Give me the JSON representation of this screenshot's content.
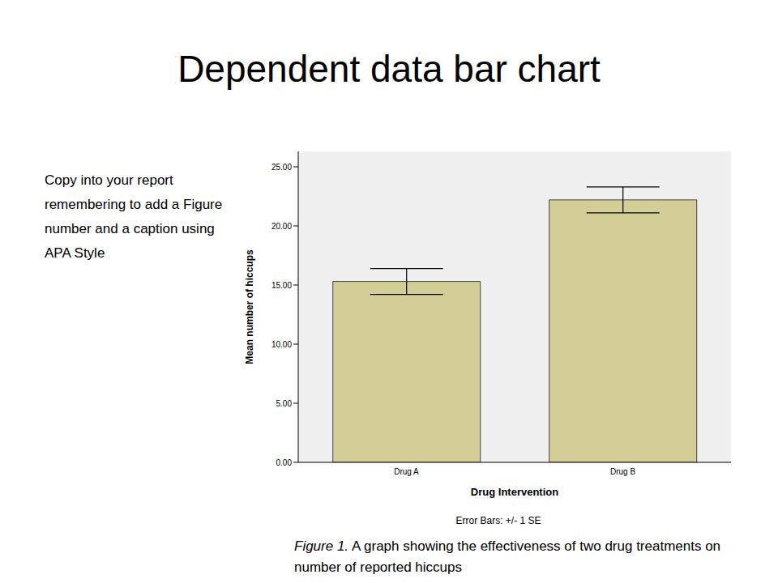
{
  "slide": {
    "title": "Dependent data bar chart",
    "instruction": "Copy into your report remembering to add a Figure number and a caption using APA Style",
    "error_bar_note": "Error Bars: +/- 1 SE",
    "caption_label": "Figure 1.",
    "caption": "A graph showing the effectiveness of two drug treatments on number of reported hiccups"
  },
  "chart_data": {
    "type": "bar",
    "x_label": "Drug Intervention",
    "y_label": "Mean number of hiccups",
    "categories": [
      "Drug A",
      "Drug B"
    ],
    "values": [
      15.3,
      22.2
    ],
    "errors": [
      1.1,
      1.1
    ],
    "color": "#d3ce97",
    "ylim": [
      0,
      26.3
    ],
    "yticks": [
      {
        "value": 0,
        "label": "0.00"
      },
      {
        "value": 5,
        "label": "5.00"
      },
      {
        "value": 10,
        "label": "10.00"
      },
      {
        "value": 15,
        "label": "15.00"
      },
      {
        "value": 20,
        "label": "20.00"
      },
      {
        "value": 25,
        "label": "25.00"
      }
    ],
    "grid": false
  }
}
